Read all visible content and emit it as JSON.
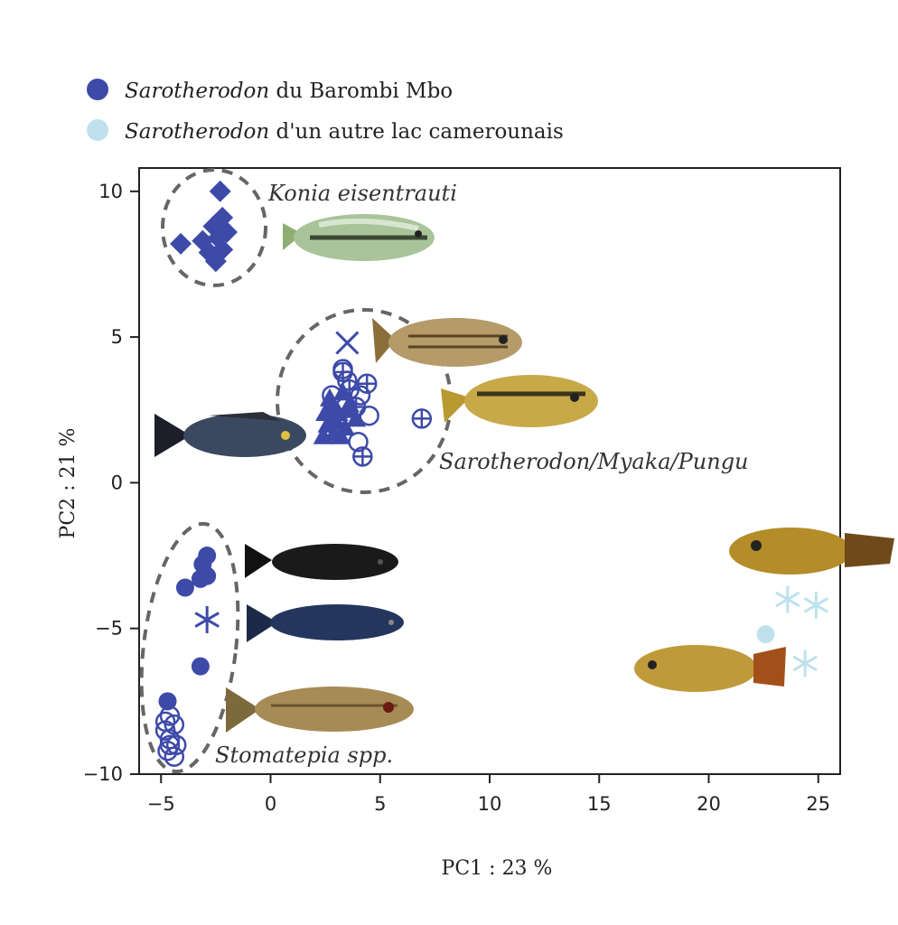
{
  "chart_data": {
    "type": "scatter",
    "title": "",
    "xlabel": "PC1 : 23 %",
    "ylabel": "PC2 : 21 %",
    "xlim": [
      -6,
      26
    ],
    "ylim": [
      -10,
      10.8
    ],
    "xticks": [
      -5,
      0,
      5,
      10,
      15,
      20,
      25
    ],
    "yticks": [
      -10,
      -5,
      0,
      5,
      10
    ],
    "xtick_labels": [
      "−5",
      "0",
      "5",
      "10",
      "15",
      "20",
      "25"
    ],
    "ytick_labels": [
      "−10",
      "−5",
      "0",
      "5",
      "10"
    ],
    "legend": [
      {
        "genus": "Sarotherodon",
        "text": " du Barombi Mbo",
        "color": "#3d4aa8"
      },
      {
        "genus": "Sarotherodon",
        "text": " d'un autre lac camerounais",
        "color": "#bfe1ee"
      }
    ],
    "group_labels": [
      "Konia eisentrauti",
      "Sarotherodon/Myaka/Pungu",
      "Stomatepia spp."
    ],
    "series": [
      {
        "name": "Konia eisentrauti",
        "marker": "diamond",
        "color": "#3d4aa8",
        "points": [
          [
            -2.3,
            10.0
          ],
          [
            -2.2,
            9.1
          ],
          [
            -2.6,
            8.8
          ],
          [
            -2.0,
            8.6
          ],
          [
            -2.4,
            8.4
          ],
          [
            -3.1,
            8.3
          ],
          [
            -4.1,
            8.2
          ],
          [
            -2.2,
            8.0
          ],
          [
            -2.8,
            7.9
          ],
          [
            -2.5,
            7.6
          ]
        ]
      },
      {
        "name": "Sarotherodon (filled triangles)",
        "marker": "triangle",
        "color": "#3d4aa8",
        "points": [
          [
            2.4,
            1.6
          ],
          [
            2.6,
            2.0
          ],
          [
            2.9,
            1.7
          ],
          [
            3.1,
            2.4
          ],
          [
            3.4,
            1.9
          ],
          [
            3.6,
            2.7
          ],
          [
            2.7,
            2.9
          ],
          [
            3.3,
            3.1
          ],
          [
            3.9,
            2.2
          ],
          [
            2.5,
            2.4
          ],
          [
            3.0,
            2.1
          ],
          [
            3.5,
            2.5
          ],
          [
            3.2,
            1.6
          ],
          [
            2.8,
            2.6
          ]
        ]
      },
      {
        "name": "Sarotherodon (open circles)",
        "marker": "open-circle",
        "color": "#3d4aa8",
        "points": [
          [
            3.5,
            3.5
          ],
          [
            4.1,
            3.0
          ],
          [
            4.5,
            2.3
          ],
          [
            2.8,
            3.0
          ],
          [
            3.3,
            3.9
          ],
          [
            4.0,
            1.4
          ]
        ]
      },
      {
        "name": "Sarotherodon (circle plus)",
        "marker": "circle-plus",
        "color": "#3d4aa8",
        "points": [
          [
            3.3,
            3.8
          ],
          [
            4.4,
            3.4
          ],
          [
            3.6,
            3.2
          ],
          [
            6.9,
            2.2
          ],
          [
            4.2,
            0.9
          ],
          [
            3.9,
            2.6
          ]
        ]
      },
      {
        "name": "Sarotherodon (cross)",
        "marker": "x",
        "color": "#3d4aa8",
        "points": [
          [
            3.5,
            4.8
          ]
        ]
      },
      {
        "name": "Stomatepia (filled circles)",
        "marker": "circle",
        "color": "#3d4aa8",
        "points": [
          [
            -2.9,
            -2.5
          ],
          [
            -3.1,
            -2.8
          ],
          [
            -2.9,
            -3.2
          ],
          [
            -3.2,
            -3.3
          ],
          [
            -3.9,
            -3.6
          ],
          [
            -3.2,
            -6.3
          ],
          [
            -4.7,
            -7.5
          ]
        ]
      },
      {
        "name": "Stomatepia (asterisk)",
        "marker": "asterisk",
        "color": "#3d4aa8",
        "points": [
          [
            -2.9,
            -4.7
          ]
        ]
      },
      {
        "name": "Stomatepia (open circles)",
        "marker": "open-circle",
        "color": "#3d4aa8",
        "points": [
          [
            -4.6,
            -8.0
          ],
          [
            -4.4,
            -8.3
          ],
          [
            -4.8,
            -8.5
          ],
          [
            -4.6,
            -8.8
          ],
          [
            -4.3,
            -9.0
          ],
          [
            -4.7,
            -9.2
          ],
          [
            -4.4,
            -9.4
          ],
          [
            -4.8,
            -8.2
          ],
          [
            -4.6,
            -9.0
          ]
        ]
      },
      {
        "name": "Sarotherodon d'un autre lac (circle)",
        "marker": "circle",
        "color": "#bfe1ee",
        "points": [
          [
            22.6,
            -5.2
          ]
        ]
      },
      {
        "name": "Sarotherodon d'un autre lac (asterisk)",
        "marker": "asterisk",
        "color": "#bfe1ee",
        "points": [
          [
            23.6,
            -4.0
          ],
          [
            24.9,
            -4.2
          ],
          [
            24.4,
            -6.2
          ]
        ]
      }
    ],
    "grid": false,
    "legend_position": "top-left"
  }
}
